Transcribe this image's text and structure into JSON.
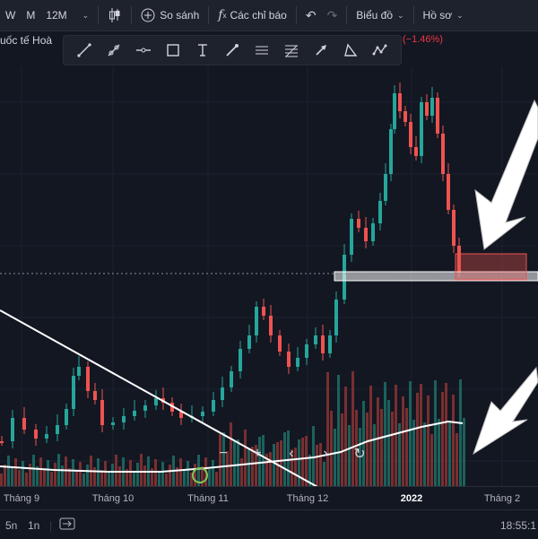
{
  "toolbar": {
    "interval_w": "W",
    "interval_m": "M",
    "interval_12m": "12M",
    "compare_label": "So sánh",
    "indicators_label": "Các chỉ báo",
    "chart_type_label": "Biểu đồ",
    "profile_label": "Hồ sơ"
  },
  "symbol": {
    "name": "uốc tế Hoà",
    "change": "(−1.46%)"
  },
  "drawing_tools": [
    "trend-line-icon",
    "ray-icon",
    "horizontal-ray-icon",
    "rectangle-icon",
    "text-cursor-icon",
    "brush-icon",
    "hlines-icon",
    "fib-icon",
    "arrow-up-icon",
    "triangle-icon",
    "pattern-icon"
  ],
  "chart_data": {
    "type": "candlestick",
    "x_labels": [
      "Tháng 9",
      "Tháng 10",
      "Tháng 11",
      "Tháng 12",
      "2022",
      "Tháng 2"
    ],
    "up_color": "#26a69a",
    "down_color": "#ef5350",
    "ma_color": "#ffffff",
    "annotations": [
      "descending-trendline",
      "support-zone",
      "red-box",
      "white-arrow-upper",
      "white-arrow-lower",
      "green-circle-marker"
    ]
  },
  "nav_controls": [
    "−",
    "+",
    "‹",
    "›",
    "↻"
  ],
  "bottom": {
    "range_5n": "5n",
    "range_1n": "1n",
    "time": "18:55:1"
  },
  "colors": {
    "background": "#131722",
    "panel": "#1e222d",
    "up": "#26a69a",
    "down": "#ef5350"
  }
}
